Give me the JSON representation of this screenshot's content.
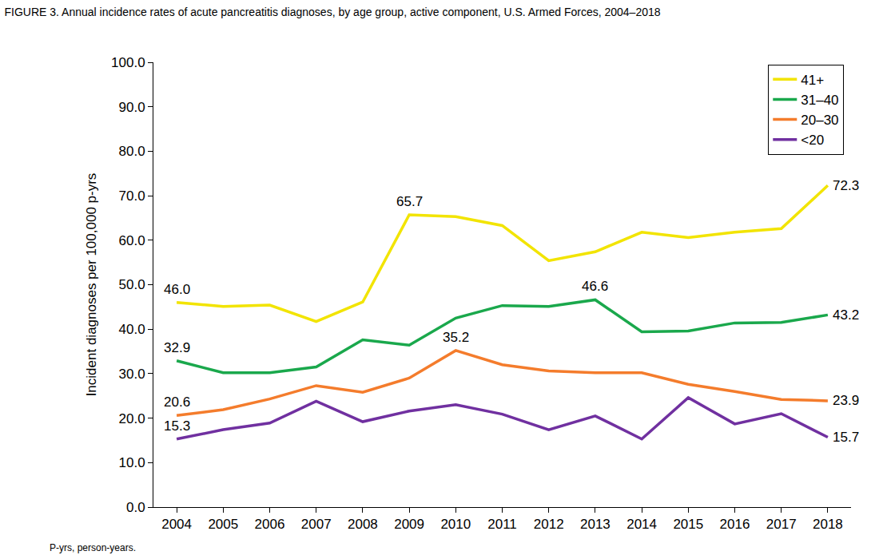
{
  "chart_data": {
    "type": "line",
    "title": "FIGURE 3. Annual incidence rates of acute pancreatitis diagnoses, by age group, active component, U.S. Armed Forces, 2004–2018",
    "y_label": "Incident diagnoses per 100,000 p-yrs",
    "note": "P-yrs, person-years.",
    "categories": [
      "2004",
      "2005",
      "2006",
      "2007",
      "2008",
      "2009",
      "2010",
      "2011",
      "2012",
      "2013",
      "2014",
      "2015",
      "2016",
      "2017",
      "2018"
    ],
    "series": [
      {
        "name": "41+",
        "color": "#f2e400",
        "values": [
          46.0,
          45.1,
          45.4,
          41.7,
          46.1,
          65.7,
          65.3,
          63.3,
          55.4,
          57.4,
          61.8,
          60.6,
          61.8,
          62.6,
          72.3
        ],
        "value_labels": [
          "46.0",
          null,
          null,
          null,
          null,
          "65.7",
          null,
          null,
          null,
          null,
          null,
          null,
          null,
          null,
          "72.3"
        ]
      },
      {
        "name": "31–40",
        "color": "#1aa84c",
        "values": [
          32.9,
          30.2,
          30.2,
          31.5,
          37.6,
          36.4,
          42.5,
          45.3,
          45.1,
          46.6,
          39.4,
          39.6,
          41.4,
          41.5,
          43.2
        ],
        "value_labels": [
          "32.9",
          null,
          null,
          null,
          null,
          null,
          null,
          null,
          null,
          "46.6",
          null,
          null,
          null,
          null,
          "43.2"
        ]
      },
      {
        "name": "20–30",
        "color": "#f47c2c",
        "values": [
          20.6,
          21.9,
          24.3,
          27.3,
          25.8,
          29.0,
          35.2,
          32.0,
          30.6,
          30.2,
          30.2,
          27.6,
          26.0,
          24.2,
          23.9
        ],
        "value_labels": [
          "20.6",
          null,
          null,
          null,
          null,
          null,
          "35.2",
          null,
          null,
          null,
          null,
          null,
          null,
          null,
          "23.9"
        ]
      },
      {
        "name": "<20",
        "color": "#7030a0",
        "values": [
          15.3,
          17.4,
          18.9,
          23.8,
          19.2,
          21.6,
          23.0,
          20.9,
          17.4,
          20.5,
          15.3,
          24.6,
          18.7,
          21.0,
          15.7
        ],
        "value_labels": [
          "15.3",
          null,
          null,
          null,
          null,
          null,
          null,
          null,
          null,
          null,
          null,
          null,
          null,
          null,
          "15.7"
        ]
      }
    ],
    "ylim": [
      0,
      100
    ],
    "yticks": [
      {
        "value": 0,
        "label": "0.0"
      },
      {
        "value": 10,
        "label": "10.0"
      },
      {
        "value": 20,
        "label": "20.0"
      },
      {
        "value": 30,
        "label": "30.0"
      },
      {
        "value": 40,
        "label": "40.0"
      },
      {
        "value": 50,
        "label": "50.0"
      },
      {
        "value": 60,
        "label": "60.0"
      },
      {
        "value": 70,
        "label": "70.0"
      },
      {
        "value": 80,
        "label": "80.0"
      },
      {
        "value": 90,
        "label": "90.0"
      },
      {
        "value": 100,
        "label": "100.0"
      }
    ],
    "grid": false,
    "legend": "top right"
  }
}
